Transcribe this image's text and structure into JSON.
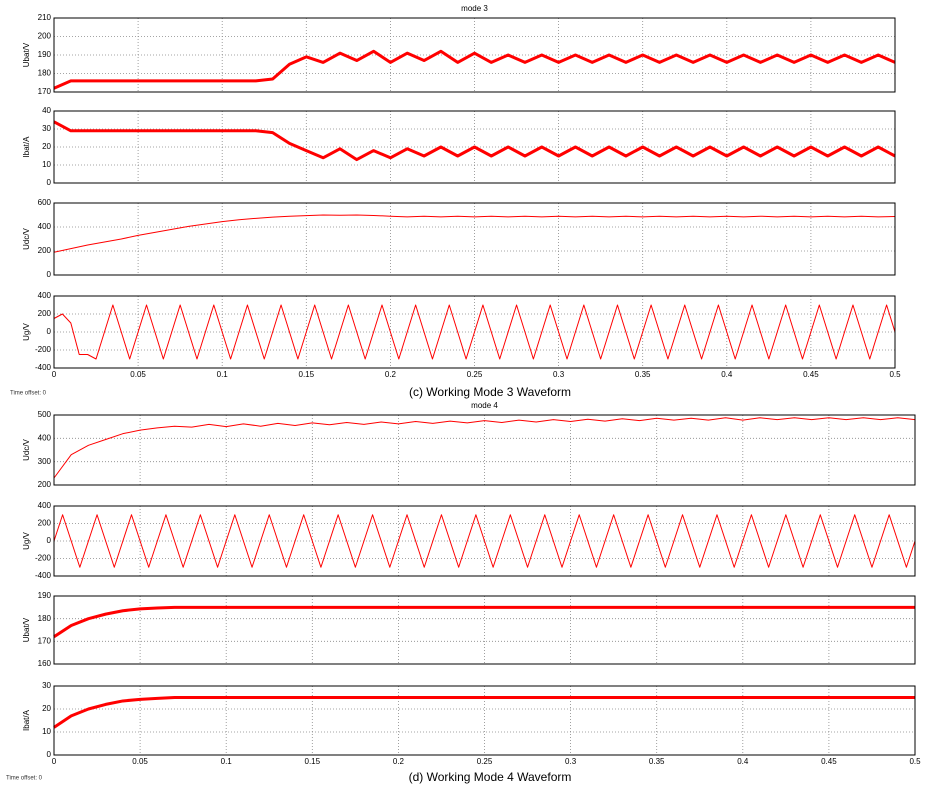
{
  "chart_data": [
    {
      "type": "line",
      "title": "mode 3",
      "ylabel": "Ubat/V",
      "color": "#ff0000",
      "thick": true,
      "grid": true,
      "xticklabels": false,
      "xlim": [
        0,
        0.5
      ],
      "ylim": [
        170,
        210
      ],
      "xticks": [
        0,
        0.05,
        0.1,
        0.15,
        0.2,
        0.25,
        0.3,
        0.35,
        0.4,
        0.45,
        0.5
      ],
      "yticks": [
        170,
        180,
        190,
        200,
        210
      ],
      "x": [
        0,
        0.01,
        0.02,
        0.03,
        0.04,
        0.05,
        0.06,
        0.07,
        0.08,
        0.09,
        0.1,
        0.11,
        0.12,
        0.13,
        0.14,
        0.15,
        0.16,
        0.17,
        0.18,
        0.19,
        0.2,
        0.21,
        0.22,
        0.23,
        0.24,
        0.25,
        0.26,
        0.27,
        0.28,
        0.29,
        0.3,
        0.31,
        0.32,
        0.33,
        0.34,
        0.35,
        0.36,
        0.37,
        0.38,
        0.39,
        0.4,
        0.41,
        0.42,
        0.43,
        0.44,
        0.45,
        0.46,
        0.47,
        0.48,
        0.49,
        0.5
      ],
      "values": [
        172,
        176,
        176,
        176,
        176,
        176,
        176,
        176,
        176,
        176,
        176,
        176,
        176,
        177,
        185,
        189,
        186,
        191,
        187,
        192,
        186,
        191,
        187,
        192,
        186,
        191,
        186,
        190,
        186,
        190,
        186,
        190,
        186,
        190,
        186,
        190,
        186,
        190,
        186,
        190,
        186,
        190,
        186,
        190,
        186,
        190,
        186,
        190,
        186,
        190,
        186
      ]
    },
    {
      "type": "line",
      "ylabel": "Ibat/A",
      "color": "#ff0000",
      "thick": true,
      "grid": true,
      "xticklabels": false,
      "xlim": [
        0,
        0.5
      ],
      "ylim": [
        0,
        40
      ],
      "xticks": [
        0,
        0.05,
        0.1,
        0.15,
        0.2,
        0.25,
        0.3,
        0.35,
        0.4,
        0.45,
        0.5
      ],
      "yticks": [
        0,
        10,
        20,
        30,
        40
      ],
      "x": [
        0,
        0.01,
        0.02,
        0.03,
        0.04,
        0.05,
        0.06,
        0.07,
        0.08,
        0.09,
        0.1,
        0.11,
        0.12,
        0.13,
        0.14,
        0.15,
        0.16,
        0.17,
        0.18,
        0.19,
        0.2,
        0.21,
        0.22,
        0.23,
        0.24,
        0.25,
        0.26,
        0.27,
        0.28,
        0.29,
        0.3,
        0.31,
        0.32,
        0.33,
        0.34,
        0.35,
        0.36,
        0.37,
        0.38,
        0.39,
        0.4,
        0.41,
        0.42,
        0.43,
        0.44,
        0.45,
        0.46,
        0.47,
        0.48,
        0.49,
        0.5
      ],
      "values": [
        34,
        29,
        29,
        29,
        29,
        29,
        29,
        29,
        29,
        29,
        29,
        29,
        29,
        28,
        22,
        18,
        14,
        19,
        13,
        18,
        14,
        19,
        15,
        20,
        15,
        20,
        15,
        20,
        15,
        20,
        15,
        20,
        15,
        20,
        15,
        20,
        15,
        20,
        15,
        20,
        15,
        20,
        15,
        20,
        15,
        20,
        15,
        20,
        15,
        20,
        15
      ]
    },
    {
      "type": "line",
      "ylabel": "Udc/V",
      "color": "#ff0000",
      "thick": false,
      "grid": true,
      "xticklabels": false,
      "xlim": [
        0,
        0.5
      ],
      "ylim": [
        0,
        600
      ],
      "xticks": [
        0,
        0.05,
        0.1,
        0.15,
        0.2,
        0.25,
        0.3,
        0.35,
        0.4,
        0.45,
        0.5
      ],
      "yticks": [
        0,
        200,
        400,
        600
      ],
      "x": [
        0,
        0.01,
        0.02,
        0.03,
        0.04,
        0.05,
        0.06,
        0.07,
        0.08,
        0.09,
        0.1,
        0.11,
        0.12,
        0.13,
        0.14,
        0.15,
        0.16,
        0.17,
        0.18,
        0.19,
        0.2,
        0.21,
        0.22,
        0.23,
        0.24,
        0.25,
        0.26,
        0.27,
        0.28,
        0.29,
        0.3,
        0.31,
        0.32,
        0.33,
        0.34,
        0.35,
        0.36,
        0.37,
        0.38,
        0.39,
        0.4,
        0.41,
        0.42,
        0.43,
        0.44,
        0.45,
        0.46,
        0.47,
        0.48,
        0.49,
        0.5
      ],
      "values": [
        190,
        220,
        250,
        275,
        300,
        330,
        355,
        380,
        405,
        425,
        445,
        460,
        472,
        482,
        490,
        495,
        500,
        498,
        500,
        496,
        490,
        484,
        490,
        484,
        490,
        484,
        490,
        484,
        490,
        484,
        490,
        484,
        490,
        484,
        490,
        484,
        490,
        484,
        490,
        484,
        490,
        484,
        490,
        484,
        490,
        484,
        490,
        484,
        490,
        484,
        488
      ]
    },
    {
      "type": "line",
      "ylabel": "Ug/V",
      "color": "#ff0000",
      "thick": false,
      "grid": true,
      "xticklabels": true,
      "xlim": [
        0,
        0.5
      ],
      "ylim": [
        -400,
        400
      ],
      "xticks": [
        0,
        0.05,
        0.1,
        0.15,
        0.2,
        0.25,
        0.3,
        0.35,
        0.4,
        0.45,
        0.5
      ],
      "yticks": [
        -400,
        -200,
        0,
        200,
        400
      ],
      "x": [
        0,
        0.005,
        0.01,
        0.015,
        0.02,
        0.025,
        0.03,
        0.035,
        0.04,
        0.045,
        0.05,
        0.055,
        0.06,
        0.065,
        0.07,
        0.075,
        0.08,
        0.085,
        0.09,
        0.095,
        0.1,
        0.105,
        0.11,
        0.115,
        0.12,
        0.125,
        0.13,
        0.135,
        0.14,
        0.145,
        0.15,
        0.155,
        0.16,
        0.165,
        0.17,
        0.175,
        0.18,
        0.185,
        0.19,
        0.195,
        0.2,
        0.205,
        0.21,
        0.215,
        0.22,
        0.225,
        0.23,
        0.235,
        0.24,
        0.245,
        0.25,
        0.255,
        0.26,
        0.265,
        0.27,
        0.275,
        0.28,
        0.285,
        0.29,
        0.295,
        0.3,
        0.305,
        0.31,
        0.315,
        0.32,
        0.325,
        0.33,
        0.335,
        0.34,
        0.345,
        0.35,
        0.355,
        0.36,
        0.365,
        0.37,
        0.375,
        0.38,
        0.385,
        0.39,
        0.395,
        0.4,
        0.405,
        0.41,
        0.415,
        0.42,
        0.425,
        0.43,
        0.435,
        0.44,
        0.445,
        0.45,
        0.455,
        0.46,
        0.465,
        0.47,
        0.475,
        0.48,
        0.485,
        0.49,
        0.495,
        0.5
      ],
      "values": [
        150,
        200,
        100,
        -250,
        -250,
        -300,
        0,
        300,
        0,
        -300,
        0,
        300,
        0,
        -300,
        0,
        300,
        0,
        -300,
        0,
        300,
        0,
        -300,
        0,
        300,
        0,
        -300,
        0,
        300,
        0,
        -300,
        0,
        300,
        0,
        -300,
        0,
        300,
        0,
        -300,
        0,
        300,
        0,
        -300,
        0,
        300,
        0,
        -300,
        0,
        300,
        0,
        -300,
        0,
        300,
        0,
        -300,
        0,
        300,
        0,
        -300,
        0,
        300,
        0,
        -300,
        0,
        300,
        0,
        -300,
        0,
        300,
        0,
        -300,
        0,
        300,
        0,
        -300,
        0,
        300,
        0,
        -300,
        0,
        300,
        0,
        -300,
        0,
        300,
        0,
        -300,
        0,
        300,
        0,
        -300,
        0,
        300,
        0,
        -300,
        0,
        300,
        0,
        -300,
        0,
        300,
        0
      ]
    },
    {
      "type": "line",
      "title": "mode 4",
      "ylabel": "Udc/V",
      "color": "#ff0000",
      "thick": false,
      "grid": true,
      "xticklabels": false,
      "xlim": [
        0,
        0.5
      ],
      "ylim": [
        200,
        500
      ],
      "xticks": [
        0,
        0.05,
        0.1,
        0.15,
        0.2,
        0.25,
        0.3,
        0.35,
        0.4,
        0.45,
        0.5
      ],
      "yticks": [
        200,
        300,
        400,
        500
      ],
      "x": [
        0,
        0.01,
        0.02,
        0.03,
        0.04,
        0.05,
        0.06,
        0.07,
        0.08,
        0.09,
        0.1,
        0.11,
        0.12,
        0.13,
        0.14,
        0.15,
        0.16,
        0.17,
        0.18,
        0.19,
        0.2,
        0.21,
        0.22,
        0.23,
        0.24,
        0.25,
        0.26,
        0.27,
        0.28,
        0.29,
        0.3,
        0.31,
        0.32,
        0.33,
        0.34,
        0.35,
        0.36,
        0.37,
        0.38,
        0.39,
        0.4,
        0.41,
        0.42,
        0.43,
        0.44,
        0.45,
        0.46,
        0.47,
        0.48,
        0.49,
        0.5
      ],
      "values": [
        230,
        330,
        370,
        395,
        420,
        435,
        445,
        452,
        448,
        460,
        450,
        462,
        452,
        464,
        455,
        466,
        458,
        468,
        460,
        470,
        462,
        472,
        464,
        474,
        466,
        476,
        468,
        478,
        470,
        480,
        472,
        482,
        474,
        484,
        476,
        486,
        478,
        486,
        478,
        488,
        478,
        488,
        480,
        488,
        480,
        488,
        480,
        488,
        480,
        488,
        480
      ]
    },
    {
      "type": "line",
      "ylabel": "Ug/V",
      "color": "#ff0000",
      "thick": false,
      "grid": true,
      "xticklabels": false,
      "xlim": [
        0,
        0.5
      ],
      "ylim": [
        -400,
        400
      ],
      "xticks": [
        0,
        0.05,
        0.1,
        0.15,
        0.2,
        0.25,
        0.3,
        0.35,
        0.4,
        0.45,
        0.5
      ],
      "yticks": [
        -400,
        -200,
        0,
        200,
        400
      ],
      "x": [
        0,
        0.005,
        0.01,
        0.015,
        0.02,
        0.025,
        0.03,
        0.035,
        0.04,
        0.045,
        0.05,
        0.055,
        0.06,
        0.065,
        0.07,
        0.075,
        0.08,
        0.085,
        0.09,
        0.095,
        0.1,
        0.105,
        0.11,
        0.115,
        0.12,
        0.125,
        0.13,
        0.135,
        0.14,
        0.145,
        0.15,
        0.155,
        0.16,
        0.165,
        0.17,
        0.175,
        0.18,
        0.185,
        0.19,
        0.195,
        0.2,
        0.205,
        0.21,
        0.215,
        0.22,
        0.225,
        0.23,
        0.235,
        0.24,
        0.245,
        0.25,
        0.255,
        0.26,
        0.265,
        0.27,
        0.275,
        0.28,
        0.285,
        0.29,
        0.295,
        0.3,
        0.305,
        0.31,
        0.315,
        0.32,
        0.325,
        0.33,
        0.335,
        0.34,
        0.345,
        0.35,
        0.355,
        0.36,
        0.365,
        0.37,
        0.375,
        0.38,
        0.385,
        0.39,
        0.395,
        0.4,
        0.405,
        0.41,
        0.415,
        0.42,
        0.425,
        0.43,
        0.435,
        0.44,
        0.445,
        0.45,
        0.455,
        0.46,
        0.465,
        0.47,
        0.475,
        0.48,
        0.485,
        0.49,
        0.495,
        0.5
      ],
      "values": [
        0,
        300,
        0,
        -300,
        0,
        300,
        0,
        -300,
        0,
        300,
        0,
        -300,
        0,
        300,
        0,
        -300,
        0,
        300,
        0,
        -300,
        0,
        300,
        0,
        -300,
        0,
        300,
        0,
        -300,
        0,
        300,
        0,
        -300,
        0,
        300,
        0,
        -300,
        0,
        300,
        0,
        -300,
        0,
        300,
        0,
        -300,
        0,
        300,
        0,
        -300,
        0,
        300,
        0,
        -300,
        0,
        300,
        0,
        -300,
        0,
        300,
        0,
        -300,
        0,
        300,
        0,
        -300,
        0,
        300,
        0,
        -300,
        0,
        300,
        0,
        -300,
        0,
        300,
        0,
        -300,
        0,
        300,
        0,
        -300,
        0,
        300,
        0,
        -300,
        0,
        300,
        0,
        -300,
        0,
        300,
        0,
        -300,
        0,
        300,
        0,
        -300,
        0,
        300,
        0,
        -300,
        0
      ]
    },
    {
      "type": "line",
      "ylabel": "Ubat/V",
      "color": "#ff0000",
      "thick": true,
      "grid": true,
      "xticklabels": false,
      "xlim": [
        0,
        0.5
      ],
      "ylim": [
        160,
        190
      ],
      "xticks": [
        0,
        0.05,
        0.1,
        0.15,
        0.2,
        0.25,
        0.3,
        0.35,
        0.4,
        0.45,
        0.5
      ],
      "yticks": [
        160,
        170,
        180,
        190
      ],
      "x": [
        0,
        0.01,
        0.02,
        0.03,
        0.04,
        0.05,
        0.06,
        0.07,
        0.08,
        0.09,
        0.1,
        0.11,
        0.12,
        0.13,
        0.14,
        0.15,
        0.16,
        0.17,
        0.18,
        0.19,
        0.2,
        0.21,
        0.22,
        0.23,
        0.24,
        0.25,
        0.26,
        0.27,
        0.28,
        0.29,
        0.3,
        0.31,
        0.32,
        0.33,
        0.34,
        0.35,
        0.36,
        0.37,
        0.38,
        0.39,
        0.4,
        0.41,
        0.42,
        0.43,
        0.44,
        0.45,
        0.46,
        0.47,
        0.48,
        0.49,
        0.5
      ],
      "values": [
        172,
        177,
        180,
        182,
        183.5,
        184.3,
        184.7,
        185,
        185,
        185,
        185,
        185,
        185,
        185,
        185,
        185,
        185,
        185,
        185,
        185,
        185,
        185,
        185,
        185,
        185,
        185,
        185,
        185,
        185,
        185,
        185,
        185,
        185,
        185,
        185,
        185,
        185,
        185,
        185,
        185,
        185,
        185,
        185,
        185,
        185,
        185,
        185,
        185,
        185,
        185,
        185
      ]
    },
    {
      "type": "line",
      "ylabel": "Ibat/A",
      "color": "#ff0000",
      "thick": true,
      "grid": true,
      "xticklabels": true,
      "xlim": [
        0,
        0.5
      ],
      "ylim": [
        0,
        30
      ],
      "xticks": [
        0,
        0.05,
        0.1,
        0.15,
        0.2,
        0.25,
        0.3,
        0.35,
        0.4,
        0.45,
        0.5
      ],
      "yticks": [
        0,
        10,
        20,
        30
      ],
      "x": [
        0,
        0.01,
        0.02,
        0.03,
        0.04,
        0.05,
        0.06,
        0.07,
        0.08,
        0.09,
        0.1,
        0.11,
        0.12,
        0.13,
        0.14,
        0.15,
        0.16,
        0.17,
        0.18,
        0.19,
        0.2,
        0.21,
        0.22,
        0.23,
        0.24,
        0.25,
        0.26,
        0.27,
        0.28,
        0.29,
        0.3,
        0.31,
        0.32,
        0.33,
        0.34,
        0.35,
        0.36,
        0.37,
        0.38,
        0.39,
        0.4,
        0.41,
        0.42,
        0.43,
        0.44,
        0.45,
        0.46,
        0.47,
        0.48,
        0.49,
        0.5
      ],
      "values": [
        12,
        17,
        20,
        22,
        23.5,
        24.2,
        24.6,
        25,
        25,
        25,
        25,
        25,
        25,
        25,
        25,
        25,
        25,
        25,
        25,
        25,
        25,
        25,
        25,
        25,
        25,
        25,
        25,
        25,
        25,
        25,
        25,
        25,
        25,
        25,
        25,
        25,
        25,
        25,
        25,
        25,
        25,
        25,
        25,
        25,
        25,
        25,
        25,
        25,
        25,
        25,
        25
      ]
    }
  ],
  "captions": [
    "(c) Working Mode 3 Waveform",
    "(d) Working Mode 4 Waveform"
  ],
  "time_offsets": [
    "Time offset:  0",
    "Time offset:  0"
  ]
}
